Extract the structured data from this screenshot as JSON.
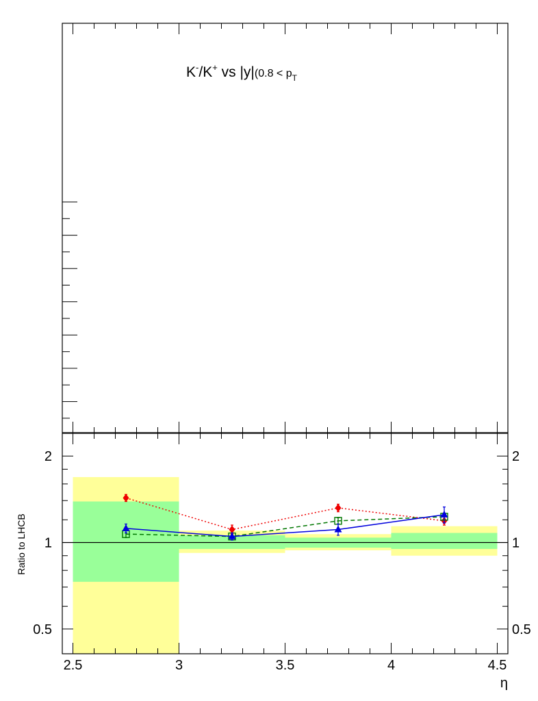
{
  "chart_data": [
    {
      "type": "scatter",
      "panel": "upper",
      "title_main": "K",
      "title_sup1": "-",
      "title_slash": "/K",
      "title_sup2": "+",
      "title_vs": " vs |y|",
      "title_paren": "(0.8 < p",
      "title_sub": "T",
      "xlim": [
        2.5,
        4.5
      ],
      "series": []
    },
    {
      "type": "scatter",
      "panel": "ratio",
      "xlabel": "η",
      "ylabel": "Ratio to LHCB",
      "y_scale": "log",
      "ylim": [
        0.41,
        2.4
      ],
      "xlim": [
        2.45,
        4.55
      ],
      "x_ticks": [
        "2.5",
        "3",
        "3.5",
        "4",
        "4.5"
      ],
      "y_ticks_left": [
        "0.5",
        "1",
        "2"
      ],
      "y_ticks_right": [
        "0.5",
        "1",
        "2"
      ],
      "reference_line": 1,
      "uncertainty_bands": [
        {
          "x_low": 2.5,
          "x_high": 3.0,
          "inner": [
            0.73,
            1.39
          ],
          "outer": [
            0.41,
            1.69
          ]
        },
        {
          "x_low": 3.0,
          "x_high": 3.5,
          "inner": [
            0.95,
            1.06
          ],
          "outer": [
            0.92,
            1.1
          ]
        },
        {
          "x_low": 3.5,
          "x_high": 4.0,
          "inner": [
            0.96,
            1.04
          ],
          "outer": [
            0.94,
            1.07
          ]
        },
        {
          "x_low": 4.0,
          "x_high": 4.5,
          "inner": [
            0.95,
            1.08
          ],
          "outer": [
            0.9,
            1.14
          ]
        }
      ],
      "band_colors": {
        "inner": "#99ff99",
        "outer": "#ffff99"
      },
      "series": [
        {
          "color": "#ee0000",
          "marker": "diamond",
          "line": "dotted",
          "x": [
            2.75,
            3.25,
            3.75,
            4.25
          ],
          "y": [
            1.43,
            1.11,
            1.32,
            1.19
          ],
          "err": [
            0.04,
            0.04,
            0.04,
            0.04
          ]
        },
        {
          "color": "#007700",
          "marker": "open-square",
          "line": "dashed",
          "x": [
            2.75,
            3.25,
            3.75,
            4.25
          ],
          "y": [
            1.07,
            1.05,
            1.19,
            1.23
          ],
          "err": [
            0.03,
            0.03,
            0.03,
            0.03
          ]
        },
        {
          "color": "#0000dd",
          "marker": "triangle",
          "line": "solid",
          "x": [
            2.75,
            3.25,
            3.75,
            4.25
          ],
          "y": [
            1.12,
            1.05,
            1.11,
            1.25
          ],
          "err": [
            0.04,
            0.03,
            0.05,
            0.08
          ]
        }
      ]
    }
  ]
}
